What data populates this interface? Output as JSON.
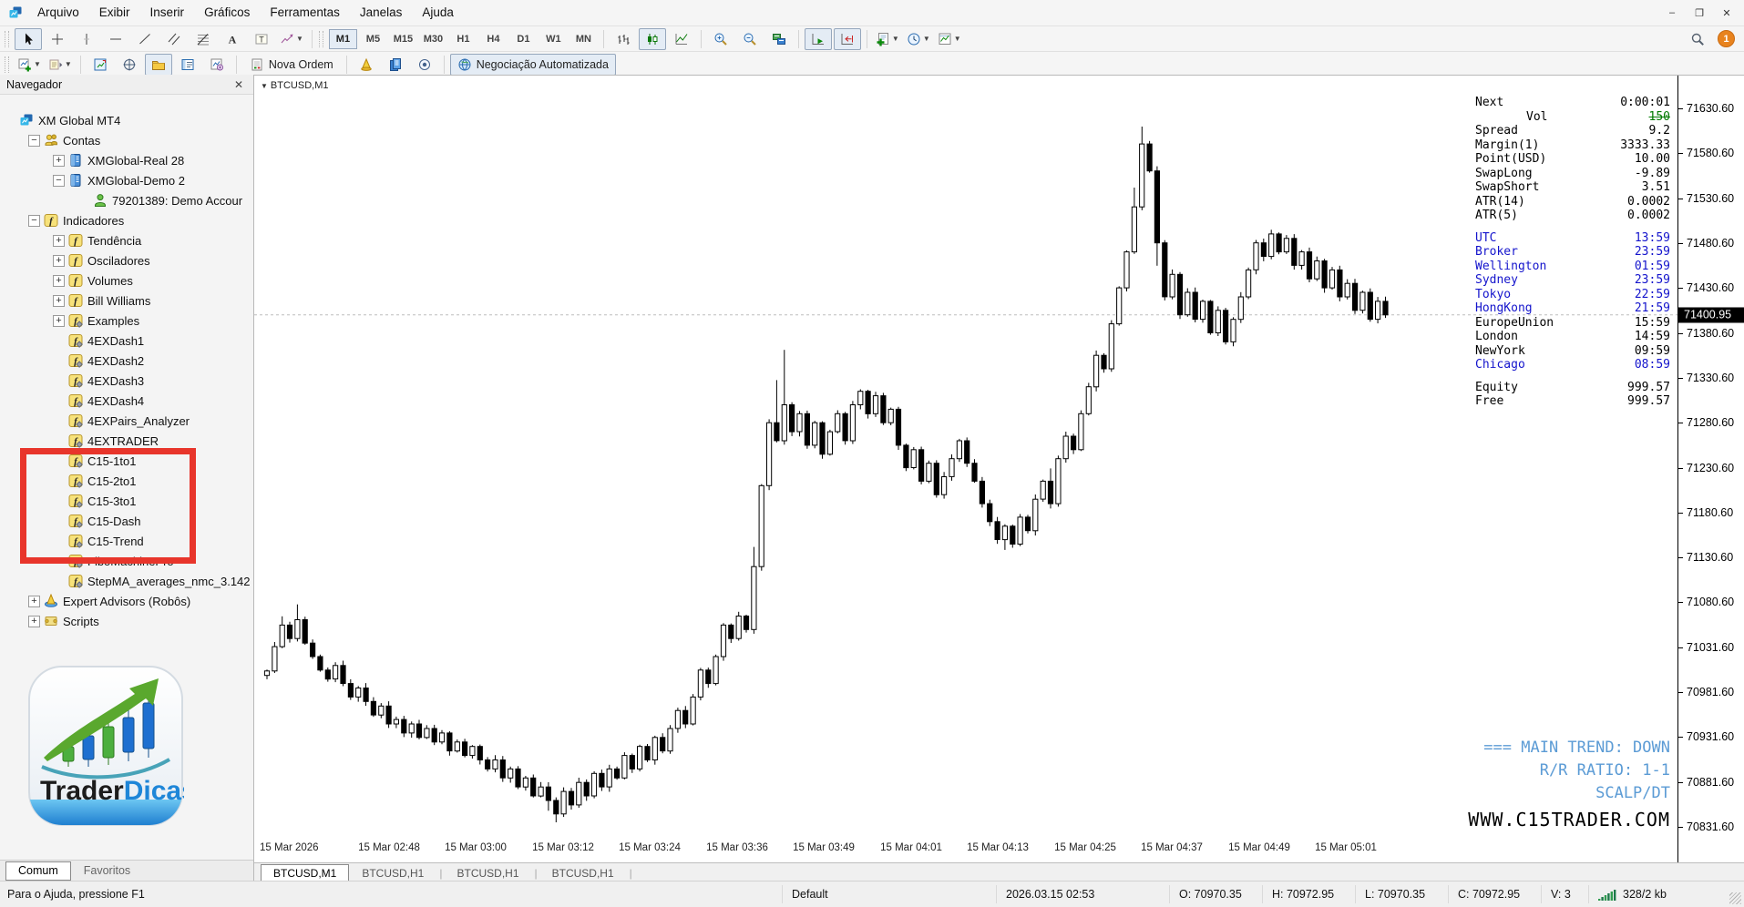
{
  "menu": {
    "items": [
      "Arquivo",
      "Exibir",
      "Inserir",
      "Gráficos",
      "Ferramentas",
      "Janelas",
      "Ajuda"
    ]
  },
  "window_controls": {
    "minimize": "–",
    "maximize": "❐",
    "close": "✕"
  },
  "notification_badge": "1",
  "toolbar_tools": [
    {
      "name": "cursor-tool",
      "icon": "cursor",
      "active": true
    },
    {
      "name": "crosshair-tool",
      "icon": "crosshair"
    },
    {
      "name": "vertical-line-tool",
      "icon": "vline"
    },
    {
      "name": "horizontal-line-tool",
      "icon": "hline"
    },
    {
      "name": "trendline-tool",
      "icon": "tline"
    },
    {
      "name": "channel-tool",
      "icon": "channel"
    },
    {
      "name": "fibonacci-tool",
      "icon": "fibo"
    },
    {
      "name": "text-tool",
      "icon": "textA"
    },
    {
      "name": "label-tool",
      "icon": "labelT"
    },
    {
      "name": "shapes-tool",
      "icon": "shapes",
      "dropdown": true
    }
  ],
  "timeframes": {
    "items": [
      "M1",
      "M5",
      "M15",
      "M30",
      "H1",
      "H4",
      "D1",
      "W1",
      "MN"
    ],
    "active": "M1"
  },
  "chart_controls": [
    {
      "sep": true
    },
    {
      "name": "bar-chart-button",
      "icon": "bars"
    },
    {
      "name": "candlestick-chart-button",
      "icon": "candles",
      "active": true
    },
    {
      "name": "line-chart-button",
      "icon": "linechart"
    },
    {
      "sep": true
    },
    {
      "name": "zoom-in-button",
      "icon": "zoomin"
    },
    {
      "name": "zoom-out-button",
      "icon": "zoomout"
    },
    {
      "name": "tile-windows-button",
      "icon": "tile"
    },
    {
      "sep": true
    },
    {
      "name": "auto-scroll-button",
      "icon": "autoscroll",
      "active": true
    },
    {
      "name": "chart-shift-button",
      "icon": "shift",
      "active": true
    },
    {
      "sep": true
    },
    {
      "name": "indicators-button",
      "icon": "ind_add",
      "dropdown": true
    },
    {
      "name": "periods-button",
      "icon": "clock",
      "dropdown": true
    },
    {
      "name": "templates-button",
      "icon": "template",
      "dropdown": true
    }
  ],
  "toolbar2": {
    "items": [
      {
        "name": "new-chart-button",
        "icon": "newchart",
        "dropdown": true
      },
      {
        "name": "profiles-button",
        "icon": "profiles",
        "dropdown": true
      },
      {
        "sep": true
      },
      {
        "name": "market-watch-button",
        "icon": "marketwatch"
      },
      {
        "name": "data-window-button",
        "icon": "datawindow"
      },
      {
        "name": "navigator-button",
        "icon": "navfolder",
        "active": true
      },
      {
        "name": "terminal-button",
        "icon": "terminal"
      },
      {
        "name": "strategy-tester-button",
        "icon": "tester"
      },
      {
        "sep": true
      },
      {
        "name": "new-order-button",
        "icon": "neworder",
        "label": "Nova Ordem"
      },
      {
        "sep": true
      },
      {
        "name": "metaeditor-button",
        "icon": "cone"
      },
      {
        "name": "docs-button",
        "icon": "docs"
      },
      {
        "name": "record-button",
        "icon": "record"
      },
      {
        "sep": true
      },
      {
        "name": "auto-trading-button",
        "icon": "globe",
        "label": "Negociação Automatizada",
        "active": true
      }
    ]
  },
  "navigator": {
    "title": "Navegador",
    "close_glyph": "✕",
    "tabs": [
      {
        "label": "Comum",
        "active": true
      },
      {
        "label": "Favoritos",
        "active": false
      }
    ],
    "tree": [
      {
        "label": "XM Global MT4",
        "depth": 0,
        "icon": "mt4",
        "expand": "none"
      },
      {
        "label": "Contas",
        "depth": 1,
        "icon": "users",
        "expand": "minus"
      },
      {
        "label": "XMGlobal-Real 28",
        "depth": 2,
        "icon": "server",
        "expand": "plus"
      },
      {
        "label": "XMGlobal-Demo 2",
        "depth": 2,
        "icon": "server",
        "expand": "minus"
      },
      {
        "label": "79201389: Demo Accour",
        "depth": 3,
        "icon": "user",
        "expand": "none"
      },
      {
        "label": "Indicadores",
        "depth": 1,
        "icon": "f",
        "expand": "minus"
      },
      {
        "label": "Tendência",
        "depth": 2,
        "icon": "f",
        "expand": "plus"
      },
      {
        "label": "Osciladores",
        "depth": 2,
        "icon": "f",
        "expand": "plus"
      },
      {
        "label": "Volumes",
        "depth": 2,
        "icon": "f",
        "expand": "plus"
      },
      {
        "label": "Bill Williams",
        "depth": 2,
        "icon": "f",
        "expand": "plus"
      },
      {
        "label": "Examples",
        "depth": 2,
        "icon": "fd",
        "expand": "plus"
      },
      {
        "label": "4EXDash1",
        "depth": 2,
        "icon": "fd",
        "expand": "none"
      },
      {
        "label": "4EXDash2",
        "depth": 2,
        "icon": "fd",
        "expand": "none"
      },
      {
        "label": "4EXDash3",
        "depth": 2,
        "icon": "fd",
        "expand": "none"
      },
      {
        "label": "4EXDash4",
        "depth": 2,
        "icon": "fd",
        "expand": "none"
      },
      {
        "label": "4EXPairs_Analyzer",
        "depth": 2,
        "icon": "fd",
        "expand": "none"
      },
      {
        "label": "4EXTRADER",
        "depth": 2,
        "icon": "fd",
        "expand": "none"
      },
      {
        "label": "C15-1to1",
        "depth": 2,
        "icon": "fd",
        "expand": "none"
      },
      {
        "label": "C15-2to1",
        "depth": 2,
        "icon": "fd",
        "expand": "none"
      },
      {
        "label": "C15-3to1",
        "depth": 2,
        "icon": "fd",
        "expand": "none"
      },
      {
        "label": "C15-Dash",
        "depth": 2,
        "icon": "fd",
        "expand": "none"
      },
      {
        "label": "C15-Trend",
        "depth": 2,
        "icon": "fd",
        "expand": "none"
      },
      {
        "label": "FiboMachinePro",
        "depth": 2,
        "icon": "fd",
        "expand": "none"
      },
      {
        "label": "StepMA_averages_nmc_3.142",
        "depth": 2,
        "icon": "fd",
        "expand": "none"
      },
      {
        "label": "Expert Advisors (Robôs)",
        "depth": 1,
        "icon": "ea",
        "expand": "plus"
      },
      {
        "label": "Scripts",
        "depth": 1,
        "icon": "script",
        "expand": "plus"
      }
    ]
  },
  "logo": {
    "text_black": "Trader",
    "text_blue": "Dicas"
  },
  "chart": {
    "symbol_label": "BTCUSD,M1",
    "info_rows": [
      {
        "label": "Next",
        "value": "0:00:01",
        "style": "plain"
      },
      {
        "label": "Vol",
        "value": "150",
        "style": "vol"
      },
      {
        "label": "Spread",
        "value": "9.2",
        "style": "plain"
      },
      {
        "label": "Margin(1)",
        "value": "3333.33",
        "style": "plain"
      },
      {
        "label": "Point(USD)",
        "value": "10.00",
        "style": "plain"
      },
      {
        "label": "SwapLong",
        "value": "-9.89",
        "style": "plain"
      },
      {
        "label": "SwapShort",
        "value": "3.51",
        "style": "plain"
      },
      {
        "label": "ATR(14)",
        "value": "0.0002",
        "style": "plain"
      },
      {
        "label": "ATR(5)",
        "value": "0.0002",
        "style": "plain"
      },
      {
        "label": "",
        "value": "",
        "style": "gap"
      },
      {
        "label": "UTC",
        "value": "13:59",
        "style": "blue"
      },
      {
        "label": "Broker",
        "value": "23:59",
        "style": "blue"
      },
      {
        "label": "Wellington",
        "value": "01:59",
        "style": "blue"
      },
      {
        "label": "Sydney",
        "value": "23:59",
        "style": "blue"
      },
      {
        "label": "Tokyo",
        "value": "22:59",
        "style": "blue"
      },
      {
        "label": "HongKong",
        "value": "21:59",
        "style": "blue"
      },
      {
        "label": "EuropeUnion",
        "value": "15:59",
        "style": "plain"
      },
      {
        "label": "London",
        "value": "14:59",
        "style": "plain"
      },
      {
        "label": "NewYork",
        "value": "09:59",
        "style": "plain"
      },
      {
        "label": "Chicago",
        "value": "08:59",
        "style": "blue"
      },
      {
        "label": "",
        "value": "",
        "style": "gap"
      },
      {
        "label": "Equity",
        "value": "999.57",
        "style": "plain"
      },
      {
        "label": "Free",
        "value": "999.57",
        "style": "plain"
      }
    ],
    "overlay_lines": [
      "=== MAIN TREND: DOWN",
      "R/R RATIO: 1-1",
      "SCALP/DT"
    ],
    "website": "WWW.C15TRADER.COM",
    "overlay_color": "#5b9bd5",
    "price_axis": {
      "labels": [
        "71630.60",
        "71580.60",
        "71530.60",
        "71480.60",
        "71430.60",
        "71380.60",
        "71330.60",
        "71280.60",
        "71230.60",
        "71180.60",
        "71130.60",
        "71080.60",
        "71031.60",
        "70981.60",
        "70931.60",
        "70881.60",
        "70831.60"
      ],
      "current": "71400.95"
    },
    "time_axis": [
      "15 Mar 2026",
      "15 Mar 02:48",
      "15 Mar 03:00",
      "15 Mar 03:12",
      "15 Mar 03:24",
      "15 Mar 03:36",
      "15 Mar 03:49",
      "15 Mar 04:01",
      "15 Mar 04:13",
      "15 Mar 04:25",
      "15 Mar 04:37",
      "15 Mar 04:49",
      "15 Mar 05:01"
    ],
    "chart_data": {
      "type": "candlestick",
      "title": "BTCUSD,M1",
      "ylim": [
        70831.6,
        71630.6
      ],
      "grid": false,
      "current_price": 71400.95,
      "open_first": 71000,
      "closes": [
        71005,
        71032,
        71056,
        71041,
        71062,
        71036,
        71021,
        71006,
        70996,
        71011,
        70991,
        70976,
        70986,
        70971,
        70956,
        70966,
        70946,
        70951,
        70936,
        70946,
        70931,
        70941,
        70926,
        70936,
        70916,
        70926,
        70911,
        70921,
        70906,
        70896,
        70906,
        70886,
        70896,
        70876,
        70886,
        70866,
        70876,
        70861,
        70846,
        70871,
        70856,
        70881,
        70866,
        70891,
        70876,
        70896,
        70886,
        70911,
        70896,
        70921,
        70906,
        70931,
        70916,
        70941,
        70961,
        70946,
        70976,
        71006,
        70991,
        71021,
        71056,
        71041,
        71066,
        71051,
        71121,
        71211,
        71281,
        71261,
        71301,
        71271,
        71291,
        71256,
        71281,
        71246,
        71271,
        71291,
        71261,
        71301,
        71316,
        71291,
        71311,
        71281,
        71296,
        71256,
        71231,
        71251,
        71216,
        71236,
        71201,
        71221,
        71241,
        71261,
        71236,
        71216,
        71191,
        71171,
        71151,
        71166,
        71146,
        71176,
        71161,
        71196,
        71216,
        71191,
        71241,
        71266,
        71251,
        71291,
        71321,
        71356,
        71341,
        71391,
        71431,
        71471,
        71521,
        71591,
        71561,
        71481,
        71421,
        71446,
        71401,
        71426,
        71396,
        71416,
        71381,
        71406,
        71371,
        71396,
        71421,
        71451,
        71481,
        71466,
        71491,
        71471,
        71486,
        71456,
        71471,
        71441,
        71461,
        71431,
        71451,
        71421,
        71436,
        71406,
        71426,
        71396,
        71416,
        71400.95
      ],
      "special_highs": {
        "2": 8,
        "4": 14,
        "64": 20,
        "67": 45,
        "68": 58,
        "103": 12,
        "114": 18,
        "115": 16
      },
      "special_lows": {
        "37": 8,
        "38": 6,
        "97": 8,
        "117": 20
      }
    }
  },
  "chart_tabs": [
    {
      "label": "BTCUSD,M1",
      "active": true
    },
    {
      "label": "BTCUSD,H1",
      "active": false
    },
    {
      "label": "BTCUSD,H1",
      "active": false
    },
    {
      "label": "BTCUSD,H1",
      "active": false
    }
  ],
  "statusbar": {
    "help": "Para o Ajuda, pressione F1",
    "cells": [
      {
        "text": "Default"
      },
      {
        "text": "2026.03.15 02:53"
      },
      {
        "text": "O: 70970.35"
      },
      {
        "text": "H: 70972.95"
      },
      {
        "text": "L: 70970.35"
      },
      {
        "text": "C: 70972.95"
      },
      {
        "text": "V: 3"
      },
      {
        "text": "328/2 kb",
        "icon": "traffic"
      }
    ]
  }
}
